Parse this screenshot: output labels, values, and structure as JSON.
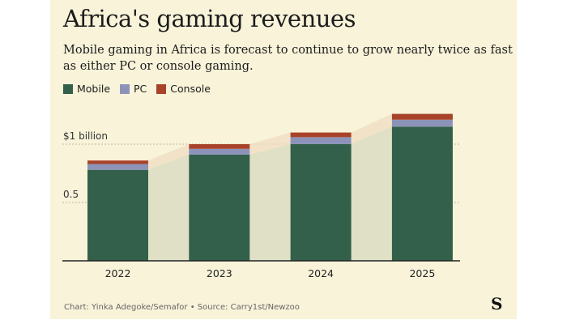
{
  "title": "Africa's gaming revenues",
  "subtitle": "Mobile gaming in Africa is forecast to continue to grow nearly twice as fast as either PC or console gaming.",
  "footer": "Chart: Yinka Adegoke/Semafor • Source: Carry1st/Newzoo",
  "logo_text": "S",
  "chart_data": {
    "type": "bar",
    "stacked": true,
    "categories": [
      "2022",
      "2023",
      "2024",
      "2025"
    ],
    "series": [
      {
        "name": "Mobile",
        "color": "#33604a",
        "values": [
          0.78,
          0.91,
          1.0,
          1.15
        ]
      },
      {
        "name": "PC",
        "color": "#8d93b8",
        "values": [
          0.05,
          0.05,
          0.06,
          0.06
        ]
      },
      {
        "name": "Console",
        "color": "#a8432a",
        "values": [
          0.03,
          0.04,
          0.04,
          0.05
        ]
      }
    ],
    "yticks": [
      {
        "value": 0.5,
        "label": "0.5"
      },
      {
        "value": 1,
        "label": "$1 billion"
      }
    ],
    "ylim": [
      0,
      1.3
    ],
    "unit": "USD billions",
    "grid": true,
    "legend": "top-left"
  }
}
